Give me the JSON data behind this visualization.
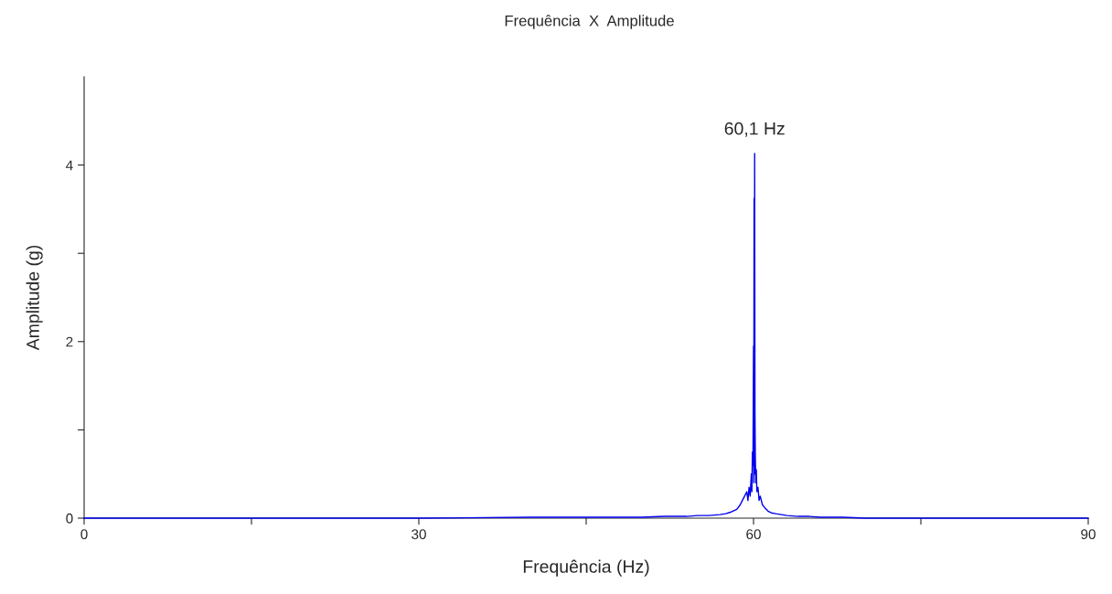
{
  "chart_data": {
    "type": "line",
    "title": "Frequência  X  Amplitude",
    "xlabel": "Frequência (Hz)",
    "ylabel": "Amplitude (g)",
    "annotations": [
      {
        "text": "60,1 Hz",
        "x": 60.1,
        "y": 4.13
      }
    ],
    "xlim": [
      0,
      90
    ],
    "ylim": [
      0,
      5
    ],
    "xticks": [
      0,
      {
        "value": 15,
        "label": null
      },
      30,
      {
        "value": 45,
        "label": null
      },
      60,
      {
        "value": 75,
        "label": null
      },
      90
    ],
    "yticks": [
      0,
      {
        "value": 1,
        "label": null
      },
      2,
      {
        "value": 3,
        "label": null
      },
      4
    ],
    "grid": false,
    "legend": false,
    "series": [
      {
        "color": "#0000ee",
        "x": [
          0,
          10,
          20,
          30,
          40,
          45,
          50,
          52,
          54,
          55,
          56,
          57,
          57.5,
          58,
          58.5,
          58.8,
          59.0,
          59.2,
          59.4,
          59.5,
          59.6,
          59.7,
          59.8,
          59.85,
          59.9,
          59.95,
          60.0,
          60.02,
          60.05,
          60.08,
          60.1,
          60.13,
          60.16,
          60.2,
          60.25,
          60.3,
          60.4,
          60.5,
          60.6,
          60.8,
          61.0,
          61.3,
          61.6,
          62,
          62.5,
          63,
          64,
          65,
          66,
          68,
          70,
          75,
          80,
          82,
          85,
          90
        ],
        "values": [
          0,
          0,
          0,
          0,
          0.01,
          0.01,
          0.01,
          0.02,
          0.02,
          0.03,
          0.03,
          0.04,
          0.05,
          0.07,
          0.1,
          0.15,
          0.2,
          0.25,
          0.3,
          0.2,
          0.35,
          0.25,
          0.5,
          0.3,
          0.75,
          0.6,
          1.95,
          0.4,
          3.62,
          0.5,
          4.13,
          1.2,
          0.7,
          0.4,
          0.55,
          0.3,
          0.35,
          0.2,
          0.25,
          0.15,
          0.12,
          0.08,
          0.06,
          0.05,
          0.04,
          0.03,
          0.02,
          0.02,
          0.01,
          0.01,
          0,
          0,
          0,
          0,
          0,
          0
        ]
      }
    ]
  }
}
